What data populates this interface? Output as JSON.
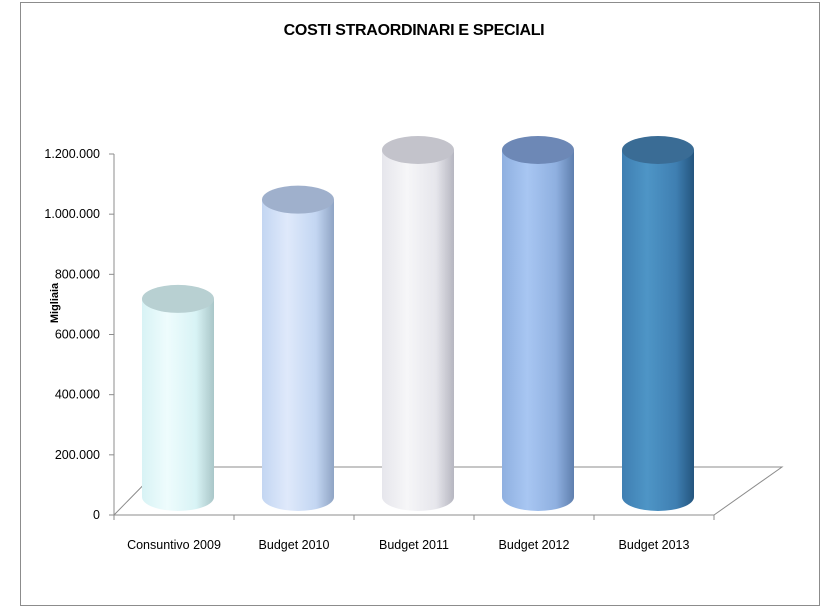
{
  "chart_data": {
    "type": "bar",
    "title": "COSTI STRAORDINARI E SPECIALI",
    "ylabel": "Migliaia",
    "xlabel": "",
    "categories": [
      "Consuntivo 2009",
      "Budget 2010",
      "Budget 2011",
      "Budget 2012",
      "Budget 2013"
    ],
    "values": [
      705000,
      1035000,
      1200000,
      1200000,
      1200000
    ],
    "ylim": [
      0,
      1200000
    ],
    "yticks": [
      0,
      200000,
      400000,
      600000,
      800000,
      1000000,
      1200000
    ],
    "ytick_labels": [
      "0",
      "200.000",
      "400.000",
      "600.000",
      "800.000",
      "1.000.000",
      "1.200.000"
    ],
    "bar_shape": "cylinder",
    "grid": false,
    "colors": [
      "#d8f3f5",
      "#c3d6f2",
      "#e6e6ec",
      "#8fb0e0",
      "#3f7fb2"
    ],
    "color_shades": [
      {
        "light": "#eefcfd",
        "mid": "#d8f3f5",
        "dark": "#a9c6c8",
        "top": "#b8d0d2"
      },
      {
        "light": "#dfe9fb",
        "mid": "#c3d6f2",
        "dark": "#8fa4c4",
        "top": "#9fb0cc"
      },
      {
        "light": "#f6f6f8",
        "mid": "#e6e6ec",
        "dark": "#b6b6c0",
        "top": "#c3c3cb"
      },
      {
        "light": "#a8c6f2",
        "mid": "#8fb0e0",
        "dark": "#5f7fae",
        "top": "#6d88b6"
      },
      {
        "light": "#4e95c6",
        "mid": "#3f7fb2",
        "dark": "#24557e",
        "top": "#3a6c95"
      }
    ]
  }
}
